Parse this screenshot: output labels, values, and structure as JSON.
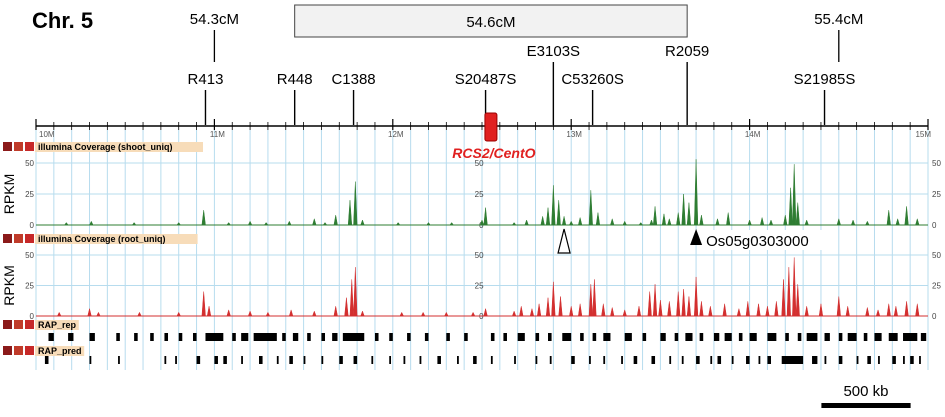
{
  "chromosome_label": "Chr. 5",
  "genetic_map": {
    "positions": [
      {
        "label": "54.3cM",
        "pos": 11.0
      },
      {
        "label": "54.6cM",
        "box_start": 11.45,
        "box_end": 13.65
      },
      {
        "label": "55.4cM",
        "pos": 14.5
      }
    ],
    "markers": [
      {
        "label": "R413",
        "pos": 10.95,
        "row": 1
      },
      {
        "label": "R448",
        "pos": 11.45,
        "row": 1
      },
      {
        "label": "C1388",
        "pos": 11.78,
        "row": 1
      },
      {
        "label": "S20487S",
        "pos": 12.52,
        "row": 1
      },
      {
        "label": "E3103S",
        "pos": 12.9,
        "row": 0
      },
      {
        "label": "C53260S",
        "pos": 13.12,
        "row": 1
      },
      {
        "label": "R2059",
        "pos": 13.65,
        "row": 0
      },
      {
        "label": "S21985S",
        "pos": 14.42,
        "row": 1
      }
    ]
  },
  "ruler": {
    "start": 10,
    "end": 15,
    "ticks": [
      {
        "label": "10M",
        "pos": 10
      },
      {
        "label": "11M",
        "pos": 11
      },
      {
        "label": "12M",
        "pos": 12
      },
      {
        "label": "13M",
        "pos": 13
      },
      {
        "label": "14M",
        "pos": 14
      },
      {
        "label": "15M",
        "pos": 15
      }
    ]
  },
  "centromere": {
    "label": "RCS2/CentO",
    "pos": 12.55,
    "color": "#e02020"
  },
  "tracks": {
    "shoot": {
      "title": "illumina Coverage (shoot_uniq)",
      "ylabel": "RPKM",
      "yticks": [
        "50",
        "25",
        "0"
      ],
      "color": "#2e7d32",
      "peaks": [
        [
          10.17,
          2
        ],
        [
          10.31,
          3
        ],
        [
          10.55,
          2
        ],
        [
          10.8,
          2
        ],
        [
          10.94,
          12
        ],
        [
          11.08,
          2
        ],
        [
          11.2,
          3
        ],
        [
          11.29,
          2
        ],
        [
          11.42,
          3
        ],
        [
          11.56,
          5
        ],
        [
          11.62,
          2
        ],
        [
          11.68,
          8
        ],
        [
          11.76,
          20
        ],
        [
          11.79,
          35
        ],
        [
          11.83,
          4
        ],
        [
          12.03,
          2
        ],
        [
          12.2,
          2
        ],
        [
          12.33,
          2
        ],
        [
          12.5,
          4
        ],
        [
          12.52,
          14
        ],
        [
          12.68,
          2
        ],
        [
          12.75,
          4
        ],
        [
          12.84,
          7
        ],
        [
          12.87,
          14
        ],
        [
          12.9,
          32
        ],
        [
          12.93,
          20
        ],
        [
          12.96,
          7
        ],
        [
          13.0,
          3
        ],
        [
          13.05,
          6
        ],
        [
          13.11,
          28
        ],
        [
          13.15,
          10
        ],
        [
          13.23,
          5
        ],
        [
          13.3,
          3
        ],
        [
          13.39,
          2
        ],
        [
          13.45,
          4
        ],
        [
          13.47,
          15
        ],
        [
          13.52,
          9
        ],
        [
          13.55,
          5
        ],
        [
          13.6,
          10
        ],
        [
          13.63,
          25
        ],
        [
          13.66,
          18
        ],
        [
          13.7,
          53
        ],
        [
          13.73,
          8
        ],
        [
          13.82,
          5
        ],
        [
          13.88,
          10
        ],
        [
          14.0,
          4
        ],
        [
          14.07,
          6
        ],
        [
          14.12,
          4
        ],
        [
          14.2,
          8
        ],
        [
          14.23,
          30
        ],
        [
          14.25,
          49
        ],
        [
          14.27,
          18
        ],
        [
          14.32,
          4
        ],
        [
          14.5,
          5
        ],
        [
          14.58,
          4
        ],
        [
          14.66,
          3
        ],
        [
          14.78,
          12
        ],
        [
          14.83,
          5
        ],
        [
          14.88,
          15
        ],
        [
          14.94,
          5
        ]
      ]
    },
    "root": {
      "title": "illumina Coverage (root_uniq)",
      "ylabel": "RPKM",
      "yticks": [
        "50",
        "25",
        "0"
      ],
      "color": "#d32f2f",
      "peaks": [
        [
          10.13,
          3
        ],
        [
          10.3,
          6
        ],
        [
          10.35,
          3
        ],
        [
          10.58,
          3
        ],
        [
          10.8,
          3
        ],
        [
          10.94,
          20
        ],
        [
          10.97,
          8
        ],
        [
          11.08,
          5
        ],
        [
          11.2,
          4
        ],
        [
          11.3,
          3
        ],
        [
          11.43,
          5
        ],
        [
          11.56,
          4
        ],
        [
          11.68,
          8
        ],
        [
          11.74,
          15
        ],
        [
          11.77,
          30
        ],
        [
          11.79,
          40
        ],
        [
          11.83,
          4
        ],
        [
          12.05,
          3
        ],
        [
          12.17,
          3
        ],
        [
          12.3,
          3
        ],
        [
          12.45,
          3
        ],
        [
          12.52,
          6
        ],
        [
          12.68,
          4
        ],
        [
          12.72,
          8
        ],
        [
          12.78,
          6
        ],
        [
          12.82,
          10
        ],
        [
          12.87,
          15
        ],
        [
          12.9,
          28
        ],
        [
          12.94,
          16
        ],
        [
          13.0,
          8
        ],
        [
          13.05,
          10
        ],
        [
          13.11,
          26
        ],
        [
          13.13,
          30
        ],
        [
          13.18,
          10
        ],
        [
          13.23,
          7
        ],
        [
          13.3,
          5
        ],
        [
          13.38,
          8
        ],
        [
          13.44,
          20
        ],
        [
          13.47,
          26
        ],
        [
          13.5,
          13
        ],
        [
          13.55,
          12
        ],
        [
          13.6,
          20
        ],
        [
          13.63,
          22
        ],
        [
          13.66,
          16
        ],
        [
          13.7,
          32
        ],
        [
          13.73,
          12
        ],
        [
          13.78,
          8
        ],
        [
          13.86,
          10
        ],
        [
          13.94,
          6
        ],
        [
          13.99,
          12
        ],
        [
          14.05,
          10
        ],
        [
          14.1,
          8
        ],
        [
          14.15,
          12
        ],
        [
          14.19,
          30
        ],
        [
          14.22,
          40
        ],
        [
          14.25,
          48
        ],
        [
          14.27,
          26
        ],
        [
          14.32,
          8
        ],
        [
          14.4,
          10
        ],
        [
          14.5,
          16
        ],
        [
          14.55,
          8
        ],
        [
          14.66,
          7
        ],
        [
          14.72,
          5
        ],
        [
          14.78,
          10
        ],
        [
          14.82,
          8
        ],
        [
          14.88,
          12
        ],
        [
          14.94,
          10
        ]
      ]
    },
    "rap_rep": {
      "title": "RAP_rep",
      "blocks": [
        [
          10.07,
          10.1
        ],
        [
          10.18,
          10.21
        ],
        [
          10.3,
          10.33
        ],
        [
          10.45,
          10.47
        ],
        [
          10.55,
          10.57
        ],
        [
          10.64,
          10.66
        ],
        [
          10.72,
          10.74
        ],
        [
          10.8,
          10.82
        ],
        [
          10.88,
          10.9
        ],
        [
          10.95,
          11.05
        ],
        [
          11.1,
          11.12
        ],
        [
          11.15,
          11.19
        ],
        [
          11.22,
          11.35
        ],
        [
          11.38,
          11.4
        ],
        [
          11.44,
          11.47
        ],
        [
          11.52,
          11.54
        ],
        [
          11.6,
          11.62
        ],
        [
          11.66,
          11.69
        ],
        [
          11.72,
          11.84
        ],
        [
          11.9,
          11.92
        ],
        [
          11.98,
          12.0
        ],
        [
          12.08,
          12.1
        ],
        [
          12.18,
          12.2
        ],
        [
          12.3,
          12.32
        ],
        [
          12.4,
          12.42
        ],
        [
          12.55,
          12.57
        ],
        [
          12.62,
          12.64
        ],
        [
          12.7,
          12.74
        ],
        [
          12.8,
          12.82
        ],
        [
          12.87,
          12.89
        ],
        [
          12.95,
          13.0
        ],
        [
          13.05,
          13.07
        ],
        [
          13.12,
          13.14
        ],
        [
          13.18,
          13.22
        ],
        [
          13.3,
          13.34
        ],
        [
          13.4,
          13.42
        ],
        [
          13.5,
          13.53
        ],
        [
          13.58,
          13.6
        ],
        [
          13.64,
          13.68
        ],
        [
          13.72,
          13.74
        ],
        [
          13.8,
          13.83
        ],
        [
          13.86,
          13.9
        ],
        [
          13.94,
          13.96
        ],
        [
          14.0,
          14.04
        ],
        [
          14.1,
          14.15
        ],
        [
          14.2,
          14.22
        ],
        [
          14.27,
          14.29
        ],
        [
          14.32,
          14.38
        ],
        [
          14.42,
          14.45
        ],
        [
          14.5,
          14.52
        ],
        [
          14.55,
          14.6
        ],
        [
          14.64,
          14.66
        ],
        [
          14.7,
          14.74
        ],
        [
          14.78,
          14.83
        ],
        [
          14.86,
          14.94
        ],
        [
          14.96,
          14.99
        ]
      ]
    },
    "rap_pred": {
      "title": "RAP_pred",
      "blocks": [
        [
          10.05,
          10.07
        ],
        [
          10.3,
          10.31
        ],
        [
          10.46,
          10.47
        ],
        [
          10.72,
          10.73
        ],
        [
          10.78,
          10.79
        ],
        [
          10.9,
          10.92
        ],
        [
          11.0,
          11.02
        ],
        [
          11.05,
          11.07
        ],
        [
          11.15,
          11.16
        ],
        [
          11.25,
          11.27
        ],
        [
          11.35,
          11.36
        ],
        [
          11.42,
          11.44
        ],
        [
          11.5,
          11.51
        ],
        [
          11.6,
          11.61
        ],
        [
          11.7,
          11.72
        ],
        [
          11.78,
          11.8
        ],
        [
          11.88,
          11.89
        ],
        [
          11.98,
          11.99
        ],
        [
          12.06,
          12.07
        ],
        [
          12.15,
          12.16
        ],
        [
          12.25,
          12.27
        ],
        [
          12.36,
          12.37
        ],
        [
          12.45,
          12.47
        ],
        [
          12.55,
          12.56
        ],
        [
          12.68,
          12.69
        ],
        [
          12.8,
          12.81
        ],
        [
          12.88,
          12.89
        ],
        [
          13.0,
          13.02
        ],
        [
          13.1,
          13.11
        ],
        [
          13.18,
          13.19
        ],
        [
          13.28,
          13.29
        ],
        [
          13.35,
          13.37
        ],
        [
          13.45,
          13.47
        ],
        [
          13.55,
          13.56
        ],
        [
          13.62,
          13.63
        ],
        [
          13.7,
          13.72
        ],
        [
          13.78,
          13.79
        ],
        [
          13.82,
          13.84
        ],
        [
          13.9,
          13.91
        ],
        [
          13.98,
          14.0
        ],
        [
          14.05,
          14.06
        ],
        [
          14.1,
          14.12
        ],
        [
          14.18,
          14.3
        ],
        [
          14.35,
          14.38
        ],
        [
          14.42,
          14.43
        ],
        [
          14.5,
          14.52
        ],
        [
          14.6,
          14.61
        ],
        [
          14.66,
          14.68
        ],
        [
          14.72,
          14.73
        ],
        [
          14.8,
          14.82
        ],
        [
          14.86,
          14.87
        ],
        [
          14.9,
          14.92
        ],
        [
          14.95,
          14.96
        ]
      ]
    }
  },
  "annotations": [
    {
      "label": "Os05g0303000",
      "pos": 13.7,
      "arrow": "filled"
    },
    {
      "pos": 12.96,
      "arrow": "open"
    }
  ],
  "scale_bar": {
    "label": "500 kb",
    "length": 0.5
  }
}
